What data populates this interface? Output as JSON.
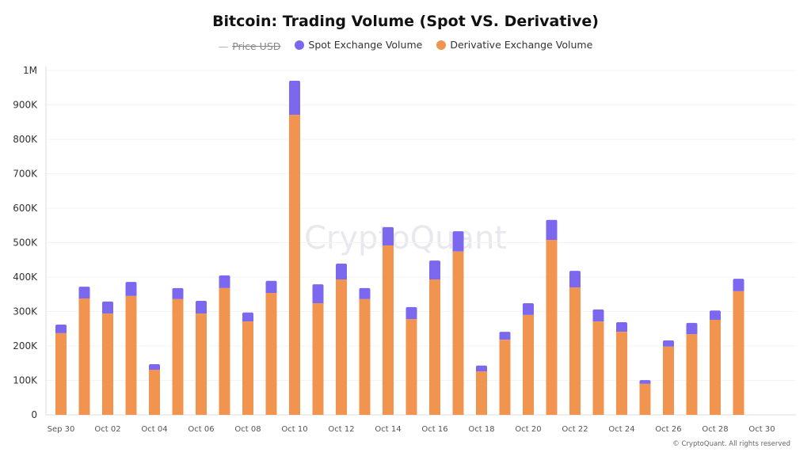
{
  "chart_data": {
    "type": "bar",
    "stacked": true,
    "title": "Bitcoin: Trading Volume (Spot VS. Derivative)",
    "legend": [
      {
        "name": "Price USD",
        "hidden": true,
        "color": "#aaaaaa"
      },
      {
        "name": "Spot Exchange Volume",
        "color": "#7b68ee"
      },
      {
        "name": "Derivative Exchange Volume",
        "color": "#f0944f"
      }
    ],
    "legend_position": "top",
    "ylim": [
      0,
      1000000
    ],
    "yticks": [
      "0",
      "100K",
      "200K",
      "300K",
      "400K",
      "500K",
      "600K",
      "700K",
      "800K",
      "900K",
      "1M"
    ],
    "xtick_labels": [
      "Sep 30",
      "Oct 02",
      "Oct 04",
      "Oct 06",
      "Oct 08",
      "Oct 10",
      "Oct 12",
      "Oct 14",
      "Oct 16",
      "Oct 18",
      "Oct 20",
      "Oct 22",
      "Oct 24",
      "Oct 26",
      "Oct 28",
      "Oct 30"
    ],
    "categories": [
      "Sep 30",
      "Oct 01",
      "Oct 02",
      "Oct 03",
      "Oct 04",
      "Oct 05",
      "Oct 06",
      "Oct 07",
      "Oct 08",
      "Oct 09",
      "Oct 10",
      "Oct 11",
      "Oct 12",
      "Oct 13",
      "Oct 14",
      "Oct 15",
      "Oct 16",
      "Oct 17",
      "Oct 18",
      "Oct 19",
      "Oct 20",
      "Oct 21",
      "Oct 22",
      "Oct 23",
      "Oct 24",
      "Oct 25",
      "Oct 26",
      "Oct 27",
      "Oct 28",
      "Oct 29"
    ],
    "series": [
      {
        "name": "Derivative Exchange Volume",
        "values": [
          237000,
          338000,
          294000,
          345000,
          131000,
          336000,
          294000,
          368000,
          271000,
          354000,
          871000,
          324000,
          393000,
          336000,
          492000,
          278000,
          393000,
          474000,
          126000,
          218000,
          290000,
          508000,
          370000,
          271000,
          241000,
          90000,
          198000,
          234000,
          276000,
          359000
        ]
      },
      {
        "name": "Spot Exchange Volume",
        "values": [
          25000,
          34000,
          35000,
          41000,
          16000,
          32000,
          37000,
          37000,
          26000,
          35000,
          99000,
          55000,
          46000,
          32000,
          53000,
          35000,
          55000,
          59000,
          17000,
          23000,
          34000,
          58000,
          48000,
          35000,
          28000,
          11000,
          18000,
          33000,
          27000,
          36000
        ]
      }
    ],
    "grid": true
  },
  "watermark": "CryptoQuant",
  "copyright": "© CryptoQuant. All rights reserved"
}
